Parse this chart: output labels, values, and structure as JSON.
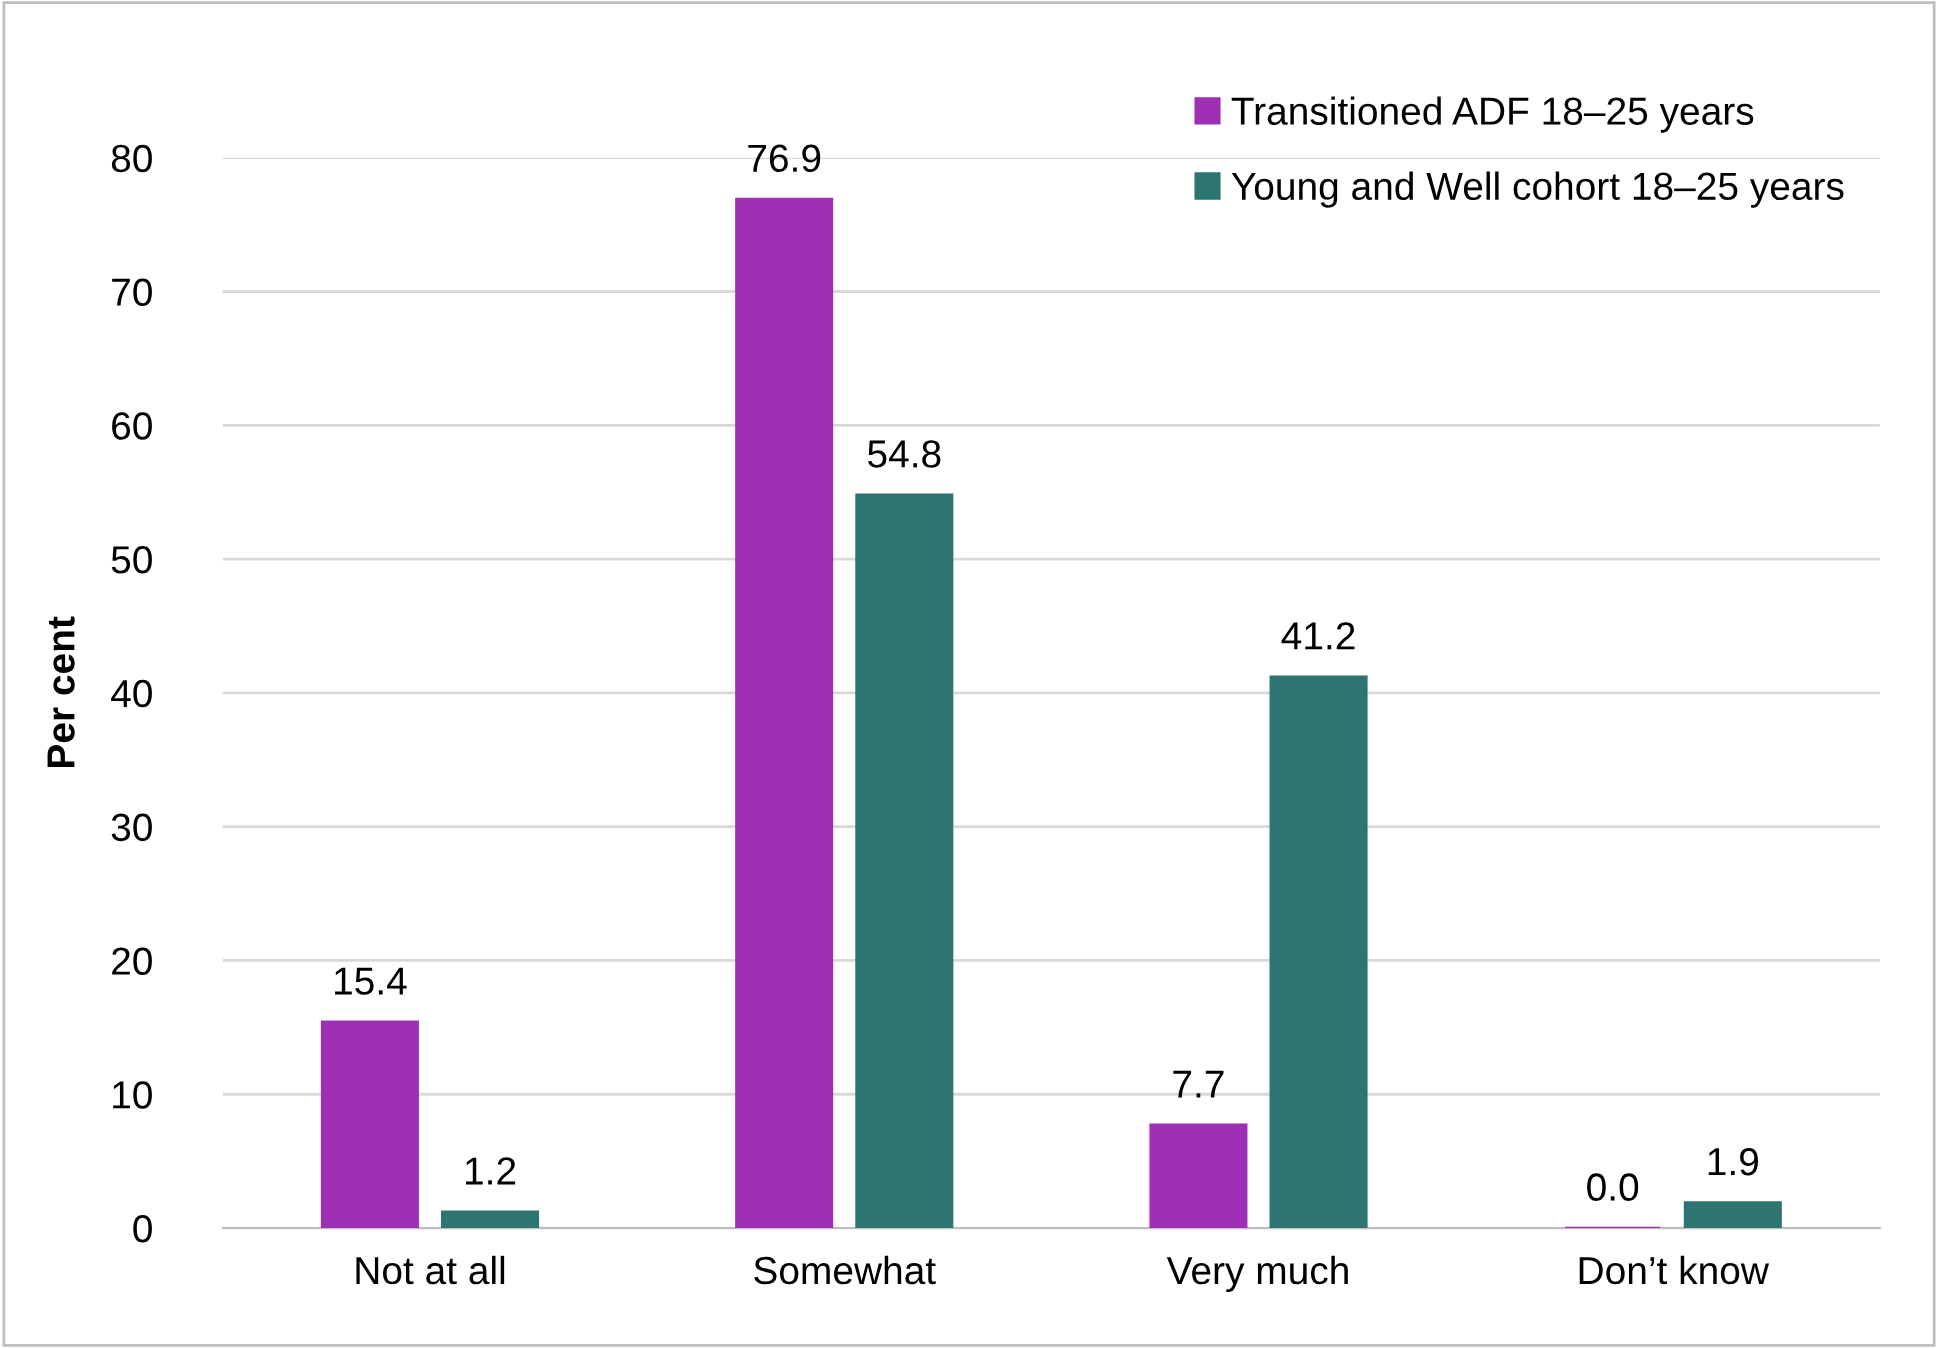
{
  "chart_data": {
    "type": "bar",
    "ylabel": "Per cent",
    "categories": [
      "Not at all",
      "Somewhat",
      "Very much",
      "Don’t know"
    ],
    "series": [
      {
        "name": "Transitioned ADF 18–25 years",
        "color": "#9e30b5",
        "values": [
          15.4,
          76.9,
          7.7,
          0
        ],
        "value_labels": [
          "15.4",
          "76.9",
          "7.7",
          "0.0"
        ]
      },
      {
        "name": "Young and Well cohort 18–25 years",
        "color": "#2e7470",
        "values": [
          1.2,
          54.8,
          41.2,
          1.9
        ],
        "value_labels": [
          "1.2",
          "54.8",
          "41.2",
          "1.9"
        ]
      }
    ],
    "ylim": [
      0,
      80
    ],
    "yticks": [
      0,
      10,
      20,
      30,
      40,
      50,
      60,
      70,
      80
    ],
    "grid": "y",
    "legend": "top right"
  }
}
